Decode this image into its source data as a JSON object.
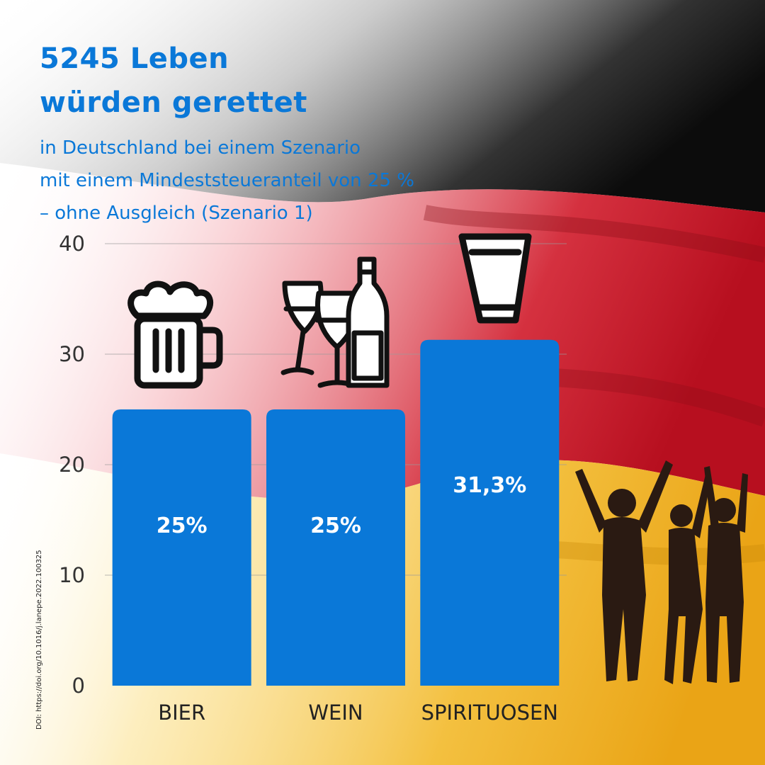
{
  "header": {
    "title_lines": [
      "5245 Leben",
      "würden gerettet"
    ],
    "subtitle_lines": [
      "in Deutschland bei einem Szenario",
      "mit einem Mindeststeueranteil von 25 %",
      "– ohne Ausgleich (Szenario 1)"
    ]
  },
  "doi": "DOI: https://doi.org/10.1016/j.lanepe.2022.100325",
  "colors": {
    "bar": "#0a78d8",
    "title": "#0a78d8"
  },
  "icons": [
    "beer-mug-icon",
    "wine-glasses-bottle-icon",
    "shot-glass-icon",
    "celebrating-people-silhouette"
  ],
  "chart_data": {
    "type": "bar",
    "categories": [
      "BIER",
      "WEIN",
      "SPIRITUOSEN"
    ],
    "values": [
      25,
      25,
      31.3
    ],
    "value_labels": [
      "25%",
      "25%",
      "31,3%"
    ],
    "ylim": [
      0,
      40
    ],
    "yticks": [
      "0",
      "10",
      "20",
      "30",
      "40"
    ],
    "grid": true,
    "legend": "none"
  }
}
